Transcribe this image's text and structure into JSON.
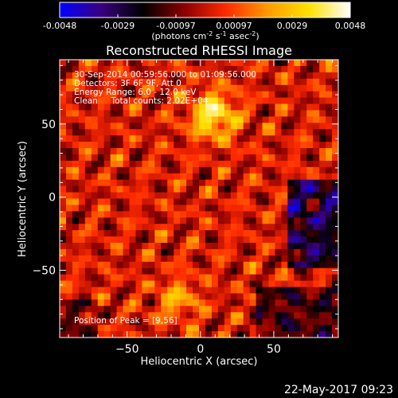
{
  "chart_data": {
    "type": "heatmap",
    "title": "Reconstructed RHESSI Image",
    "xlabel": "Heliocentric X (arcsec)",
    "ylabel": "Heliocentric Y (arcsec)",
    "xlim": [
      -96,
      94
    ],
    "ylim": [
      -96,
      94
    ],
    "x_ticks": [
      -50,
      0,
      50
    ],
    "y_ticks": [
      -50,
      0,
      50
    ],
    "colorbar": {
      "ticks": [
        "-0.0048",
        "-0.0029",
        "-0.00097",
        "0.00097",
        "0.0029",
        "0.0048"
      ],
      "label_main": "(photons cm",
      "label_sup1": "-2",
      "label_mid1": " s",
      "label_sup2": "-1",
      "label_mid2": " asec",
      "label_sup3": "-2",
      "label_end": ")",
      "colors": [
        "#0000ff",
        "#3a0080",
        "#000000",
        "#8a0000",
        "#ff2a00",
        "#ff9a00",
        "#ffe000",
        "#ffffff"
      ]
    },
    "annotations": {
      "time_range": "30-Sep-2014 00:59:56.000 to 01:09:56.000",
      "detectors": "Detectors: 3F 6F 9F, Att 0",
      "energy": "Energy Range: 6.0 - 12.0 keV",
      "clean": "Clean     Total counts: 2.02E+04",
      "peak": "Position of Peak = [9,56]"
    },
    "peak_position": [
      9,
      56
    ],
    "grid": false
  },
  "footer": {
    "timestamp": "22-May-2017 09:23"
  }
}
